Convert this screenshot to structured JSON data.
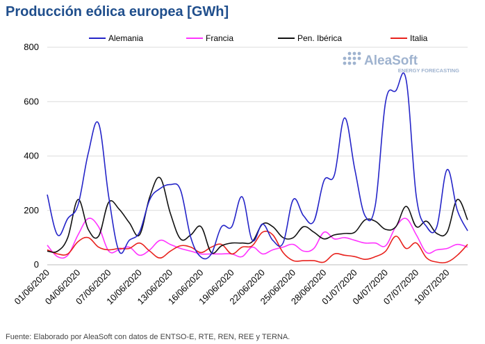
{
  "chart_data": {
    "type": "line",
    "title": "Producción eólica europea [GWh]",
    "source": "Fuente: Elaborado por AleaSoft con datos de ENTSO-E, RTE, REN, REE y TERNA.",
    "logo": {
      "name": "AleaSoft",
      "tagline": "ENERGY FORECASTING"
    },
    "xlabel": "",
    "ylabel": "",
    "ylim": [
      0,
      800
    ],
    "yticks": [
      0,
      200,
      400,
      600,
      800
    ],
    "x_tick_labels": [
      "01/06/2020",
      "04/06/2020",
      "07/06/2020",
      "10/06/2020",
      "13/06/2020",
      "16/06/2020",
      "19/06/2020",
      "22/06/2020",
      "25/06/2020",
      "28/06/2020",
      "01/07/2020",
      "04/07/2020",
      "07/07/2020",
      "10/07/2020"
    ],
    "x": [
      "01/06",
      "02/06",
      "03/06",
      "04/06",
      "05/06",
      "06/06",
      "07/06",
      "08/06",
      "09/06",
      "10/06",
      "11/06",
      "12/06",
      "13/06",
      "14/06",
      "15/06",
      "16/06",
      "17/06",
      "18/06",
      "19/06",
      "20/06",
      "21/06",
      "22/06",
      "23/06",
      "24/06",
      "25/06",
      "26/06",
      "27/06",
      "28/06",
      "29/06",
      "30/06",
      "01/07",
      "02/07",
      "03/07",
      "04/07",
      "05/07",
      "06/07",
      "07/07",
      "08/07",
      "09/07",
      "10/07",
      "11/07",
      "12/07"
    ],
    "series": [
      {
        "name": "Alemania",
        "color": "#2424c8",
        "values": [
          258,
          110,
          170,
          220,
          410,
          520,
          250,
          50,
          90,
          120,
          240,
          280,
          295,
          275,
          100,
          28,
          40,
          140,
          140,
          250,
          90,
          150,
          90,
          80,
          240,
          180,
          160,
          310,
          330,
          540,
          350,
          180,
          220,
          600,
          640,
          680,
          250,
          140,
          140,
          350,
          200,
          125
        ]
      },
      {
        "name": "Francia",
        "color": "#ff33ff",
        "values": [
          72,
          30,
          35,
          110,
          170,
          140,
          50,
          55,
          65,
          35,
          55,
          90,
          75,
          60,
          50,
          40,
          40,
          40,
          40,
          30,
          65,
          40,
          55,
          65,
          75,
          50,
          60,
          120,
          95,
          100,
          90,
          80,
          80,
          70,
          140,
          170,
          110,
          45,
          55,
          60,
          75,
          65
        ]
      },
      {
        "name": "Pen. Ibérica",
        "color": "#111111",
        "values": [
          50,
          50,
          100,
          240,
          130,
          105,
          230,
          205,
          155,
          110,
          250,
          320,
          190,
          95,
          110,
          140,
          45,
          70,
          80,
          80,
          85,
          150,
          140,
          100,
          100,
          140,
          120,
          95,
          110,
          115,
          120,
          165,
          160,
          130,
          140,
          215,
          140,
          160,
          115,
          120,
          240,
          165
        ]
      },
      {
        "name": "Italia",
        "color": "#e8211c",
        "values": [
          55,
          40,
          40,
          85,
          100,
          65,
          55,
          60,
          60,
          80,
          50,
          25,
          50,
          70,
          65,
          45,
          65,
          75,
          40,
          65,
          70,
          120,
          110,
          45,
          15,
          15,
          15,
          10,
          40,
          35,
          30,
          20,
          30,
          50,
          105,
          60,
          80,
          25,
          10,
          10,
          35,
          75
        ]
      }
    ],
    "legend_position": "top"
  }
}
